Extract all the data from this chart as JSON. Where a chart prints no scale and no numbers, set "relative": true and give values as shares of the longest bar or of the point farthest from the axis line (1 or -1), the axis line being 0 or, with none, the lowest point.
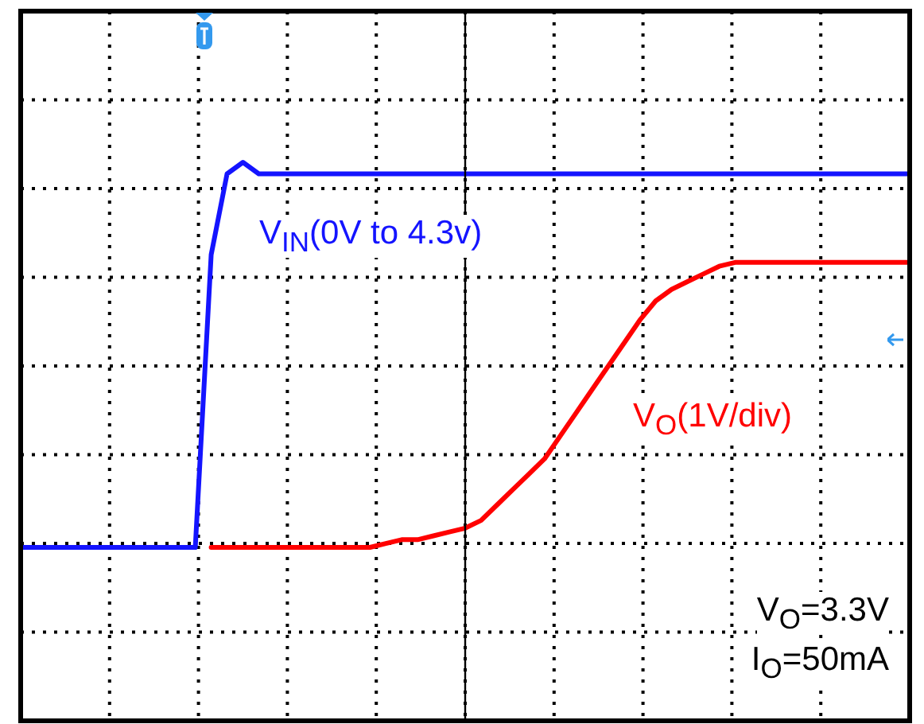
{
  "chart_data": {
    "type": "line",
    "relative": true,
    "grid": true,
    "legend": false,
    "tick_labels": false,
    "marker": "none",
    "line_style": "solid",
    "categories": [
      null,
      null,
      null,
      null,
      null,
      null,
      null,
      null,
      null,
      null,
      null,
      null,
      null,
      null,
      null,
      null,
      null,
      null,
      null,
      null,
      null,
      null,
      null,
      null,
      null,
      null,
      null,
      null,
      null,
      null,
      null,
      null,
      null,
      null,
      null,
      null,
      null,
      null,
      null,
      null,
      null,
      null,
      null,
      null,
      null,
      null,
      null,
      null,
      null,
      null,
      null,
      null,
      null,
      null,
      null,
      null,
      null
    ],
    "series": [
      {
        "name": "V$_{IN}$(0V to 4.3v)",
        "color": "#1414ff",
        "values": [
          0,
          0,
          0,
          0,
          0,
          0,
          0,
          0,
          0,
          0,
          0,
          0,
          0.76,
          0.97,
          1,
          0.97,
          0.97,
          0.97,
          0.97,
          0.97,
          0.97,
          0.97,
          0.97,
          0.97,
          0.97,
          0.97,
          0.97,
          0.97,
          0.97,
          0.97,
          0.97,
          0.97,
          0.97,
          0.97,
          0.97,
          0.97,
          0.97,
          0.97,
          0.97,
          0.97,
          0.97,
          0.97,
          0.97,
          0.97,
          0.97,
          0.97,
          0.97,
          0.97,
          0.97,
          0.97,
          0.97,
          0.97,
          0.97,
          0.97,
          0.97,
          0.97,
          0.97
        ]
      },
      {
        "name": "V$_{O}$(1V/div)",
        "color": "#ff0000",
        "values": [
          null,
          null,
          null,
          null,
          null,
          null,
          null,
          null,
          null,
          null,
          null,
          null,
          0,
          0,
          0,
          0,
          0,
          0,
          0,
          0,
          0,
          0,
          0,
          0.01,
          0.02,
          0.02,
          0.03,
          0.04,
          0.05,
          0.07,
          0.11,
          0.15,
          0.19,
          0.23,
          0.29,
          0.35,
          0.41,
          0.47,
          0.53,
          0.59,
          0.64,
          0.67,
          0.69,
          0.71,
          0.73,
          0.74,
          0.74,
          0.74,
          0.74,
          0.74,
          0.74,
          0.74,
          0.74,
          0.74,
          0.74,
          0.74,
          0.74
        ]
      }
    ],
    "annotations": [
      "V$_{O}$=3.3V",
      "I$_{O}$=50mA"
    ]
  }
}
